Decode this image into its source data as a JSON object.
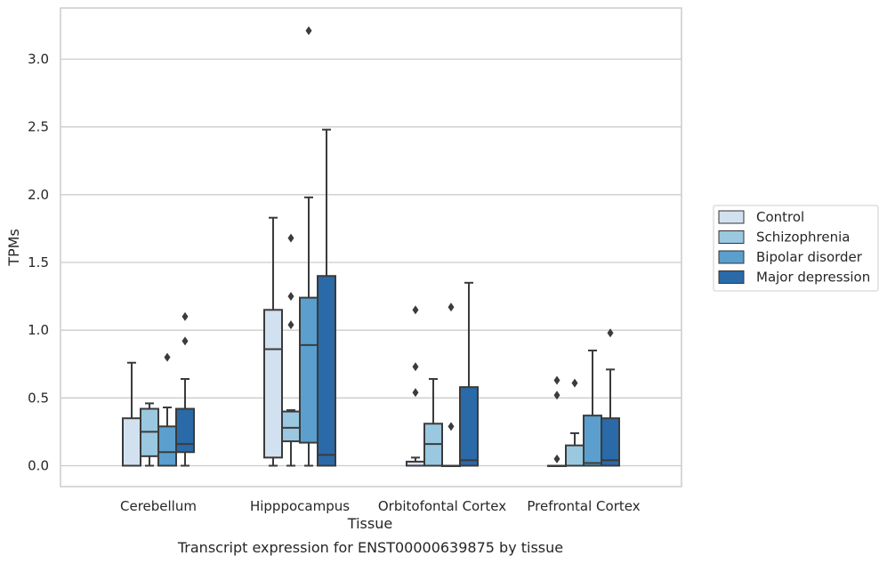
{
  "caption": "Transcript expression for ENST00000639875 by tissue",
  "chart_data": {
    "type": "box",
    "xlabel": "Tissue",
    "ylabel": "TPMs",
    "ylim": [
      -0.16,
      3.38
    ],
    "yticks": [
      "0.0",
      "0.5",
      "1.0",
      "1.5",
      "2.0",
      "2.5",
      "3.0"
    ],
    "ytick_values": [
      0.0,
      0.5,
      1.0,
      1.5,
      2.0,
      2.5,
      3.0
    ],
    "grid": "horizontal",
    "legend_position": "right",
    "categories": [
      "Cerebellum",
      "Hipppocampus",
      "Orbitofontal Cortex",
      "Prefrontal Cortex"
    ],
    "series": [
      {
        "name": "Control",
        "color": "#d2e1f0",
        "boxes": [
          {
            "q1": 0.0,
            "median": 0.0,
            "q3": 0.35,
            "whisker_low": 0.0,
            "whisker_high": 0.76,
            "outliers": []
          },
          {
            "q1": 0.06,
            "median": 0.86,
            "q3": 1.15,
            "whisker_low": 0.0,
            "whisker_high": 1.83,
            "outliers": []
          },
          {
            "q1": 0.0,
            "median": 0.0,
            "q3": 0.03,
            "whisker_low": 0.0,
            "whisker_high": 0.06,
            "outliers": [
              0.54,
              0.73,
              1.15
            ]
          },
          {
            "q1": 0.0,
            "median": 0.0,
            "q3": 0.0,
            "whisker_low": 0.0,
            "whisker_high": 0.0,
            "outliers": [
              0.05,
              0.52,
              0.63
            ]
          }
        ]
      },
      {
        "name": "Schizophrenia",
        "color": "#9ac8e0",
        "boxes": [
          {
            "q1": 0.07,
            "median": 0.25,
            "q3": 0.42,
            "whisker_low": 0.0,
            "whisker_high": 0.46,
            "outliers": []
          },
          {
            "q1": 0.18,
            "median": 0.28,
            "q3": 0.4,
            "whisker_low": 0.0,
            "whisker_high": 0.41,
            "outliers": [
              1.04,
              1.25,
              1.68
            ]
          },
          {
            "q1": 0.0,
            "median": 0.16,
            "q3": 0.31,
            "whisker_low": 0.0,
            "whisker_high": 0.64,
            "outliers": []
          },
          {
            "q1": 0.0,
            "median": 0.0,
            "q3": 0.15,
            "whisker_low": 0.0,
            "whisker_high": 0.24,
            "outliers": [
              0.61
            ]
          }
        ]
      },
      {
        "name": "Bipolar disorder",
        "color": "#5a9fcd",
        "boxes": [
          {
            "q1": 0.0,
            "median": 0.1,
            "q3": 0.29,
            "whisker_low": 0.0,
            "whisker_high": 0.43,
            "outliers": [
              0.8
            ]
          },
          {
            "q1": 0.17,
            "median": 0.89,
            "q3": 1.24,
            "whisker_low": 0.0,
            "whisker_high": 1.98,
            "outliers": [
              3.21
            ]
          },
          {
            "q1": 0.0,
            "median": 0.0,
            "q3": 0.0,
            "whisker_low": 0.0,
            "whisker_high": 0.0,
            "outliers": [
              0.29,
              1.17
            ]
          },
          {
            "q1": 0.0,
            "median": 0.02,
            "q3": 0.37,
            "whisker_low": 0.0,
            "whisker_high": 0.85,
            "outliers": []
          }
        ]
      },
      {
        "name": "Major depression",
        "color": "#2a6aa8",
        "boxes": [
          {
            "q1": 0.1,
            "median": 0.16,
            "q3": 0.42,
            "whisker_low": 0.0,
            "whisker_high": 0.64,
            "outliers": [
              0.92,
              1.1
            ]
          },
          {
            "q1": 0.0,
            "median": 0.08,
            "q3": 1.4,
            "whisker_low": 0.0,
            "whisker_high": 2.48,
            "outliers": []
          },
          {
            "q1": 0.0,
            "median": 0.04,
            "q3": 0.58,
            "whisker_low": 0.0,
            "whisker_high": 1.35,
            "outliers": []
          },
          {
            "q1": 0.0,
            "median": 0.04,
            "q3": 0.35,
            "whisker_low": 0.0,
            "whisker_high": 0.71,
            "outliers": [
              0.98
            ]
          }
        ]
      }
    ]
  }
}
